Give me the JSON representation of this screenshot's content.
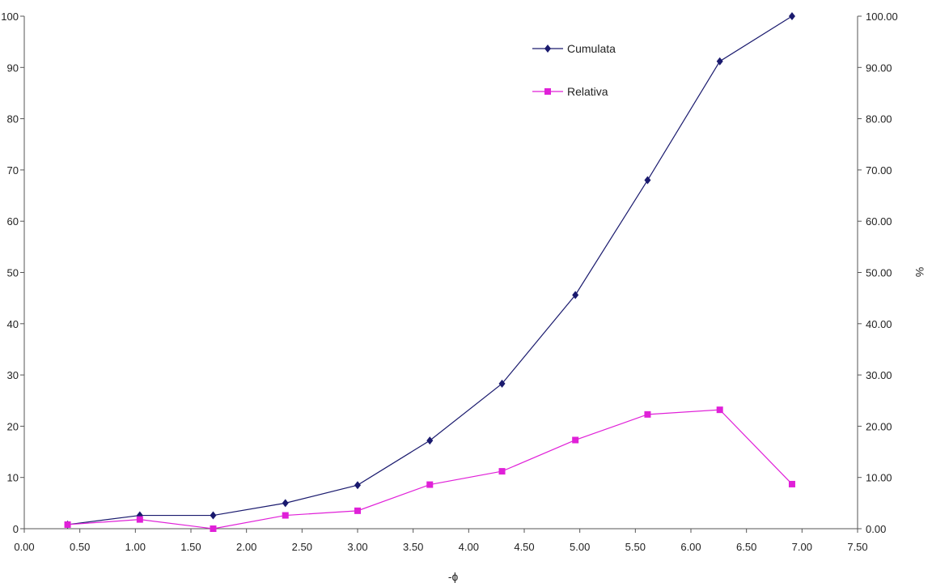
{
  "chart_data": {
    "type": "line",
    "xlabel": "-ɸ",
    "ylabel": "%",
    "xlim": [
      0,
      7.5
    ],
    "ylim": [
      0,
      100
    ],
    "x_ticks": [
      "0.00",
      "0.50",
      "1.00",
      "1.50",
      "2.00",
      "2.50",
      "3.00",
      "3.50",
      "4.00",
      "4.50",
      "5.00",
      "5.50",
      "6.00",
      "6.50",
      "7.00",
      "7.50"
    ],
    "y_ticks_left": [
      "0",
      "10",
      "20",
      "30",
      "40",
      "50",
      "60",
      "70",
      "80",
      "90",
      "100"
    ],
    "y_ticks_right": [
      "0.00",
      "10.00",
      "20.00",
      "30.00",
      "40.00",
      "50.00",
      "60.00",
      "70.00",
      "80.00",
      "90.00",
      "100.00"
    ],
    "legend_position": "top-right",
    "grid": false,
    "series": [
      {
        "name": "Cumulata",
        "color": "#1a1a6e",
        "marker": "diamond",
        "x": [
          0.39,
          1.04,
          1.7,
          2.35,
          3.0,
          3.65,
          4.3,
          4.96,
          5.61,
          6.26,
          6.91
        ],
        "y": [
          0.8,
          2.6,
          2.6,
          5.0,
          8.5,
          17.2,
          28.3,
          45.6,
          68.0,
          91.2,
          100.0
        ]
      },
      {
        "name": "Relativa",
        "color": "#e020d8",
        "marker": "square",
        "x": [
          0.39,
          1.04,
          1.7,
          2.35,
          3.0,
          3.65,
          4.3,
          4.96,
          5.61,
          6.26,
          6.91
        ],
        "y": [
          0.8,
          1.8,
          0.0,
          2.6,
          3.5,
          8.6,
          11.2,
          17.3,
          22.3,
          23.2,
          8.7
        ]
      }
    ]
  }
}
